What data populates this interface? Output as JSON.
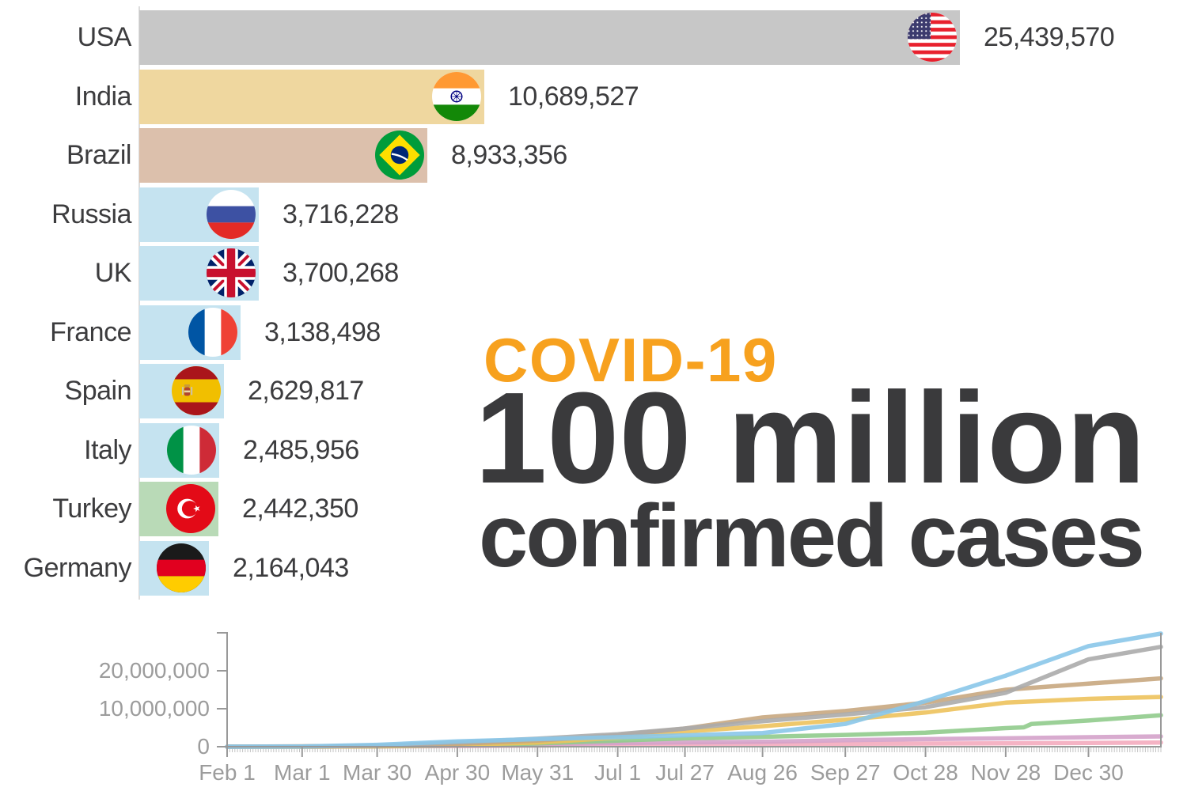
{
  "title": {
    "line1": "COVID-19",
    "line2": "100 million",
    "line3": "confirmed cases",
    "accent_color": "#F7A11E",
    "text_color": "#3A3A3C"
  },
  "bar_chart": {
    "max_value": 25439570,
    "rows": [
      {
        "country": "USA",
        "value": "25,439,570",
        "value_num": 25439570,
        "bar_color": "#C7C7C7",
        "flag": "usa"
      },
      {
        "country": "India",
        "value": "10,689,527",
        "value_num": 10689527,
        "bar_color": "#EFD79F",
        "flag": "india"
      },
      {
        "country": "Brazil",
        "value": "8,933,356",
        "value_num": 8933356,
        "bar_color": "#DCC0AC",
        "flag": "brazil"
      },
      {
        "country": "Russia",
        "value": "3,716,228",
        "value_num": 3716228,
        "bar_color": "#C5E3F0",
        "flag": "russia"
      },
      {
        "country": "UK",
        "value": "3,700,268",
        "value_num": 3700268,
        "bar_color": "#C5E3F0",
        "flag": "uk"
      },
      {
        "country": "France",
        "value": "3,138,498",
        "value_num": 3138498,
        "bar_color": "#C5E3F0",
        "flag": "france"
      },
      {
        "country": "Spain",
        "value": "2,629,817",
        "value_num": 2629817,
        "bar_color": "#C5E3F0",
        "flag": "spain"
      },
      {
        "country": "Italy",
        "value": "2,485,956",
        "value_num": 2485956,
        "bar_color": "#C5E3F0",
        "flag": "italy"
      },
      {
        "country": "Turkey",
        "value": "2,442,350",
        "value_num": 2442350,
        "bar_color": "#B9DAB7",
        "flag": "turkey"
      },
      {
        "country": "Germany",
        "value": "2,164,043",
        "value_num": 2164043,
        "bar_color": "#C5E3F0",
        "flag": "germany"
      }
    ]
  },
  "chart_data": {
    "type": "line",
    "title": "",
    "xlabel": "",
    "ylabel": "",
    "grid": false,
    "legend": "none",
    "layout": {
      "axis_color": "#999999",
      "minor_tick_color": "#C3C3C3",
      "tick_label_color": "#9C9C9C"
    },
    "x_axis": {
      "unit": "days since Feb 1, 2020",
      "range_days": [
        0,
        361
      ],
      "tick_days": [
        0,
        29,
        58,
        89,
        120,
        151,
        177,
        207,
        239,
        270,
        301,
        333
      ],
      "tick_labels": [
        "Feb 1",
        "Mar 1",
        "Mar 30",
        "Apr 30",
        "May 31",
        "Jul 1",
        "Jul 27",
        "Aug 26",
        "Sep 27",
        "Oct 28",
        "Nov 28",
        "Dec 30"
      ]
    },
    "y_axis": {
      "max": 30000000,
      "tick_values": [
        0,
        10000000,
        20000000
      ],
      "tick_labels": [
        "0",
        "10,000,000",
        "20,000,000"
      ]
    },
    "series": [
      {
        "name": "pink",
        "color": "#F4ABBE",
        "x": [
          0,
          29,
          58,
          89,
          120,
          151,
          177,
          207,
          239,
          270,
          301,
          333,
          361
        ],
        "y": [
          0,
          10000,
          60000,
          180000,
          320000,
          480000,
          580000,
          680000,
          780000,
          840000,
          900000,
          1000000,
          1100000
        ]
      },
      {
        "name": "violet",
        "color": "#D4A2CA",
        "x": [
          0,
          29,
          58,
          89,
          120,
          151,
          177,
          207,
          239,
          270,
          301,
          333,
          361
        ],
        "y": [
          0,
          20000,
          120000,
          400000,
          650000,
          950000,
          1150000,
          1300000,
          1700000,
          2000000,
          2200000,
          2500000,
          2700000
        ]
      },
      {
        "name": "green",
        "color": "#90CB8C",
        "x": [
          0,
          29,
          58,
          89,
          120,
          151,
          177,
          207,
          239,
          270,
          301,
          308,
          311,
          333,
          361
        ],
        "y": [
          0,
          0,
          100000,
          350000,
          850000,
          1600000,
          2200000,
          2600000,
          3100000,
          3700000,
          4900000,
          5100000,
          6000000,
          6900000,
          8300000
        ]
      },
      {
        "name": "yellow",
        "color": "#EDC25C",
        "x": [
          0,
          29,
          58,
          89,
          120,
          151,
          177,
          207,
          239,
          270,
          301,
          333,
          361
        ],
        "y": [
          0,
          0,
          100000,
          450000,
          1100000,
          2400000,
          4000000,
          5400000,
          7100000,
          9000000,
          11600000,
          12600000,
          13100000
        ]
      },
      {
        "name": "tan",
        "color": "#C8A780",
        "x": [
          0,
          29,
          58,
          89,
          120,
          151,
          177,
          207,
          239,
          270,
          301,
          333,
          361
        ],
        "y": [
          0,
          100000,
          250000,
          750000,
          1600000,
          3000000,
          4800000,
          7700000,
          9400000,
          11600000,
          15000000,
          16600000,
          18000000
        ]
      },
      {
        "name": "gray",
        "color": "#ABABAB",
        "x": [
          0,
          29,
          58,
          89,
          120,
          151,
          177,
          207,
          239,
          270,
          301,
          333,
          361
        ],
        "y": [
          0,
          50000,
          250000,
          1150000,
          2100000,
          3300000,
          4800000,
          6700000,
          8500000,
          10400000,
          14200000,
          23000000,
          26300000
        ]
      },
      {
        "name": "blue",
        "color": "#89C7E9",
        "x": [
          0,
          29,
          58,
          89,
          120,
          151,
          177,
          207,
          239,
          270,
          301,
          333,
          361
        ],
        "y": [
          0,
          50000,
          500000,
          1400000,
          2000000,
          2500000,
          3000000,
          3600000,
          6000000,
          12000000,
          18700000,
          26500000,
          29800000
        ]
      }
    ]
  }
}
